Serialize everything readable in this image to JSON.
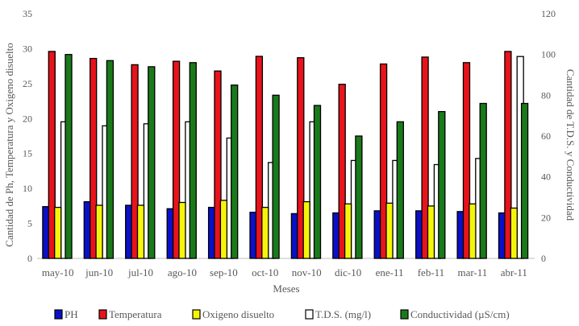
{
  "chart_data": {
    "type": "bar",
    "xlabel": "Meses",
    "ylabel_left": "Cantidad de Ph, Temperatura y Oxigeno disuelto",
    "ylabel_right": "Cantidad de T.D.S. y Conductividad",
    "ylim_left": [
      0,
      35
    ],
    "yticks_left": [
      0,
      5,
      10,
      15,
      20,
      25,
      30,
      35
    ],
    "ylim_right": [
      0,
      120
    ],
    "yticks_right": [
      0,
      20,
      40,
      60,
      80,
      100,
      120
    ],
    "categories": [
      "may-10",
      "jun-10",
      "jul-10",
      "ago-10",
      "sep-10",
      "oct-10",
      "nov-10",
      "dic-10",
      "ene-11",
      "feb-11",
      "mar-11",
      "abr-11"
    ],
    "series": [
      {
        "name": "PH",
        "axis": "left",
        "color": "#0a10c8",
        "values": [
          7.4,
          8.1,
          7.6,
          7.1,
          7.3,
          6.6,
          6.4,
          6.5,
          6.8,
          6.8,
          6.7,
          6.5
        ]
      },
      {
        "name": "Temperatura",
        "axis": "left",
        "color": "#e8131b",
        "values": [
          29.6,
          28.6,
          27.7,
          28.2,
          26.8,
          28.9,
          28.7,
          24.9,
          27.8,
          28.8,
          28.0,
          29.6
        ]
      },
      {
        "name": "Oxigeno disuelto",
        "axis": "left",
        "color": "#f5f50a",
        "values": [
          7.3,
          7.6,
          7.6,
          8.0,
          8.3,
          7.3,
          8.1,
          7.8,
          7.9,
          7.5,
          7.8,
          7.2
        ]
      },
      {
        "name": "T.D.S. (mg/l)",
        "axis": "right",
        "color": "#ffffff",
        "values": [
          67,
          65,
          66,
          67,
          59,
          47,
          67,
          48,
          48,
          46,
          49,
          99
        ]
      },
      {
        "name": "Conductividad (µS/cm)",
        "axis": "right",
        "color": "#1a7a1a",
        "values": [
          100,
          97,
          94,
          96,
          85,
          80,
          75,
          60,
          67,
          72,
          76,
          76
        ]
      }
    ]
  }
}
